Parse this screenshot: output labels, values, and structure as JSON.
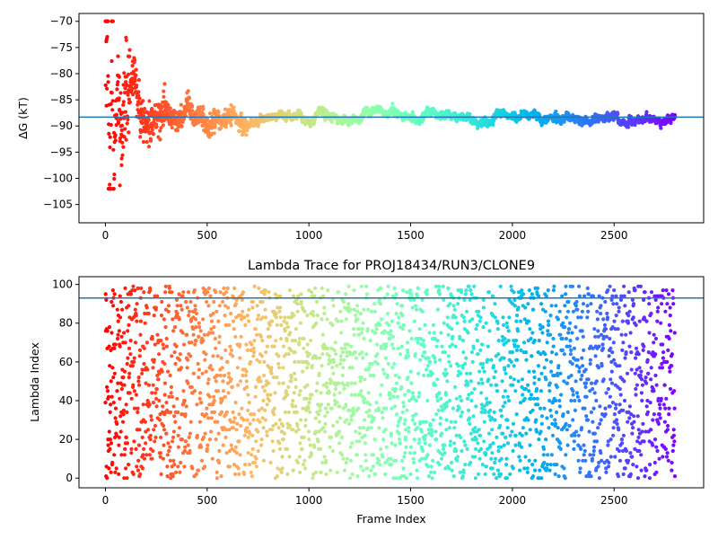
{
  "chart_data": [
    {
      "type": "scatter",
      "title": "",
      "xlabel": "",
      "ylabel": "ΔG (kT)",
      "xlim": [
        -130,
        2940
      ],
      "ylim": [
        -108.5,
        -68.5
      ],
      "xticks": [
        0,
        500,
        1000,
        1500,
        2000,
        2500
      ],
      "yticks": [
        -105,
        -100,
        -95,
        -90,
        -85,
        -80,
        -75,
        -70
      ],
      "xtick_labels": [
        "0",
        "500",
        "1000",
        "1500",
        "2000",
        "2500"
      ],
      "ytick_labels": [
        "−105",
        "−100",
        "−95",
        "−90",
        "−85",
        "−80",
        "−75",
        "−70"
      ],
      "hline": {
        "y": -88.3,
        "color": "#1f77b4"
      },
      "colormap": "rainbow (red at frame 0 → violet at last frame)",
      "grid": false,
      "legend": "none",
      "n_frames": 2800,
      "description": "Running free-energy estimate; scattered early values between −102 and −70 converging to about −88.3 after ~500 frames",
      "series": [
        {
          "values_sampled": [
            [
              0,
              -90
            ],
            [
              5,
              -80
            ],
            [
              10,
              -70
            ],
            [
              15,
              -100
            ],
            [
              20,
              -94
            ],
            [
              25,
              -102
            ],
            [
              30,
              -78
            ],
            [
              35,
              -86
            ],
            [
              40,
              -99
            ],
            [
              45,
              -96
            ],
            [
              50,
              -90
            ],
            [
              60,
              -84
            ],
            [
              70,
              -87
            ],
            [
              80,
              -92
            ],
            [
              90,
              -88
            ],
            [
              100,
              -86
            ],
            [
              120,
              -84
            ],
            [
              140,
              -80
            ],
            [
              160,
              -85
            ],
            [
              180,
              -88
            ],
            [
              200,
              -90
            ],
            [
              250,
              -87
            ],
            [
              300,
              -88
            ],
            [
              350,
              -89
            ],
            [
              400,
              -86
            ],
            [
              450,
              -87
            ],
            [
              500,
              -90
            ],
            [
              600,
              -88
            ],
            [
              700,
              -89
            ],
            [
              800,
              -88
            ],
            [
              900,
              -88
            ],
            [
              1000,
              -89
            ],
            [
              1100,
              -87.5
            ],
            [
              1200,
              -89
            ],
            [
              1300,
              -88
            ],
            [
              1400,
              -87.8
            ],
            [
              1500,
              -88
            ],
            [
              1600,
              -88.3
            ],
            [
              1700,
              -88.5
            ],
            [
              1800,
              -88.8
            ],
            [
              1900,
              -88.7
            ],
            [
              2000,
              -88.2
            ],
            [
              2100,
              -88.2
            ],
            [
              2200,
              -88.5
            ],
            [
              2300,
              -88.6
            ],
            [
              2400,
              -88.7
            ],
            [
              2500,
              -88.7
            ],
            [
              2600,
              -88.8
            ],
            [
              2700,
              -88.6
            ],
            [
              2800,
              -88.5
            ]
          ]
        }
      ]
    },
    {
      "type": "scatter",
      "title": "Lambda Trace for PROJ18434/RUN3/CLONE9",
      "xlabel": "Frame Index",
      "ylabel": "Lambda Index",
      "xlim": [
        -130,
        2940
      ],
      "ylim": [
        -5,
        104
      ],
      "xticks": [
        0,
        500,
        1000,
        1500,
        2000,
        2500
      ],
      "yticks": [
        0,
        20,
        40,
        60,
        80,
        100
      ],
      "xtick_labels": [
        "0",
        "500",
        "1000",
        "1500",
        "2000",
        "2500"
      ],
      "ytick_labels": [
        "0",
        "20",
        "40",
        "60",
        "80",
        "100"
      ],
      "hline": {
        "y": 93,
        "color": "#1f77b4"
      },
      "colormap": "rainbow (red at frame 0 → violet at last frame)",
      "grid": false,
      "legend": "none",
      "n_frames": 2800,
      "description": "Lambda index per frame (integer 0–99), spread roughly uniformly",
      "series": [
        {
          "values_sampled": [
            [
              0,
              12
            ],
            [
              20,
              99
            ],
            [
              40,
              45
            ],
            [
              80,
              87
            ],
            [
              120,
              70
            ],
            [
              200,
              34
            ],
            [
              300,
              92
            ],
            [
              400,
              5
            ],
            [
              500,
              60
            ],
            [
              600,
              18
            ],
            [
              700,
              77
            ],
            [
              800,
              41
            ],
            [
              900,
              96
            ],
            [
              1000,
              23
            ],
            [
              1100,
              55
            ],
            [
              1200,
              8
            ],
            [
              1300,
              83
            ],
            [
              1400,
              37
            ],
            [
              1500,
              64
            ],
            [
              1600,
              2
            ],
            [
              1700,
              91
            ],
            [
              1800,
              48
            ],
            [
              1900,
              15
            ],
            [
              2000,
              72
            ],
            [
              2100,
              29
            ],
            [
              2200,
              98
            ],
            [
              2300,
              53
            ],
            [
              2400,
              11
            ],
            [
              2500,
              66
            ],
            [
              2600,
              39
            ],
            [
              2700,
              85
            ],
            [
              2780,
              20
            ]
          ]
        }
      ]
    }
  ]
}
